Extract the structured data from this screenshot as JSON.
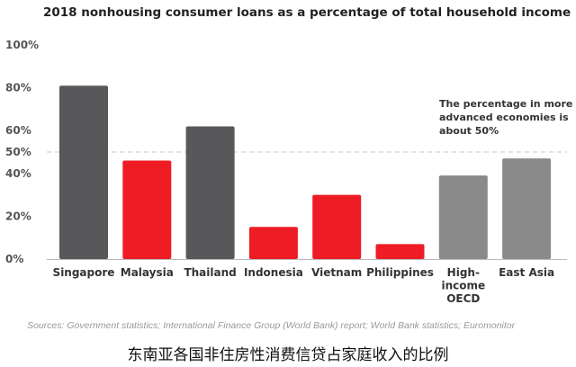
{
  "chart_data": {
    "type": "bar",
    "title": "2018 nonhousing consumer loans as a percentage of total household income",
    "categories": [
      "Singapore",
      "Malaysia",
      "Thailand",
      "Indonesia",
      "Vietnam",
      "Philippines",
      "High-income OECD",
      "East Asia"
    ],
    "category_lines": [
      [
        "Singapore"
      ],
      [
        "Malaysia"
      ],
      [
        "Thailand"
      ],
      [
        "Indonesia"
      ],
      [
        "Vietnam"
      ],
      [
        "Philippines"
      ],
      [
        "High-",
        "income",
        "OECD"
      ],
      [
        "East Asia"
      ]
    ],
    "values": [
      81,
      46,
      62,
      15,
      30,
      7,
      39,
      47
    ],
    "bar_colors": [
      "#58585a",
      "#ee1c25",
      "#58585a",
      "#ee1c25",
      "#ee1c25",
      "#ee1c25",
      "#8a8a8a",
      "#8a8a8a"
    ],
    "ylim": [
      0,
      100
    ],
    "yticks": [
      {
        "value": 0,
        "label": "0%"
      },
      {
        "value": 20,
        "label": "20%"
      },
      {
        "value": 40,
        "label": "40%"
      },
      {
        "value": 50,
        "label": "50%"
      },
      {
        "value": 60,
        "label": "60%"
      },
      {
        "value": 80,
        "label": "80%"
      },
      {
        "value": 100,
        "label": "100%"
      }
    ],
    "reference_line": {
      "value": 50,
      "style": "dashed"
    },
    "annotation": "The percentage in more advanced economies is about 50%",
    "xlabel": "",
    "ylabel": "",
    "grid": false
  },
  "source": "Sources: Government statistics; International Finance Group (World Bank) report; World Bank statistics; Euromonitor",
  "caption": "东南亚各国非住房性消费信贷占家庭收入的比例"
}
